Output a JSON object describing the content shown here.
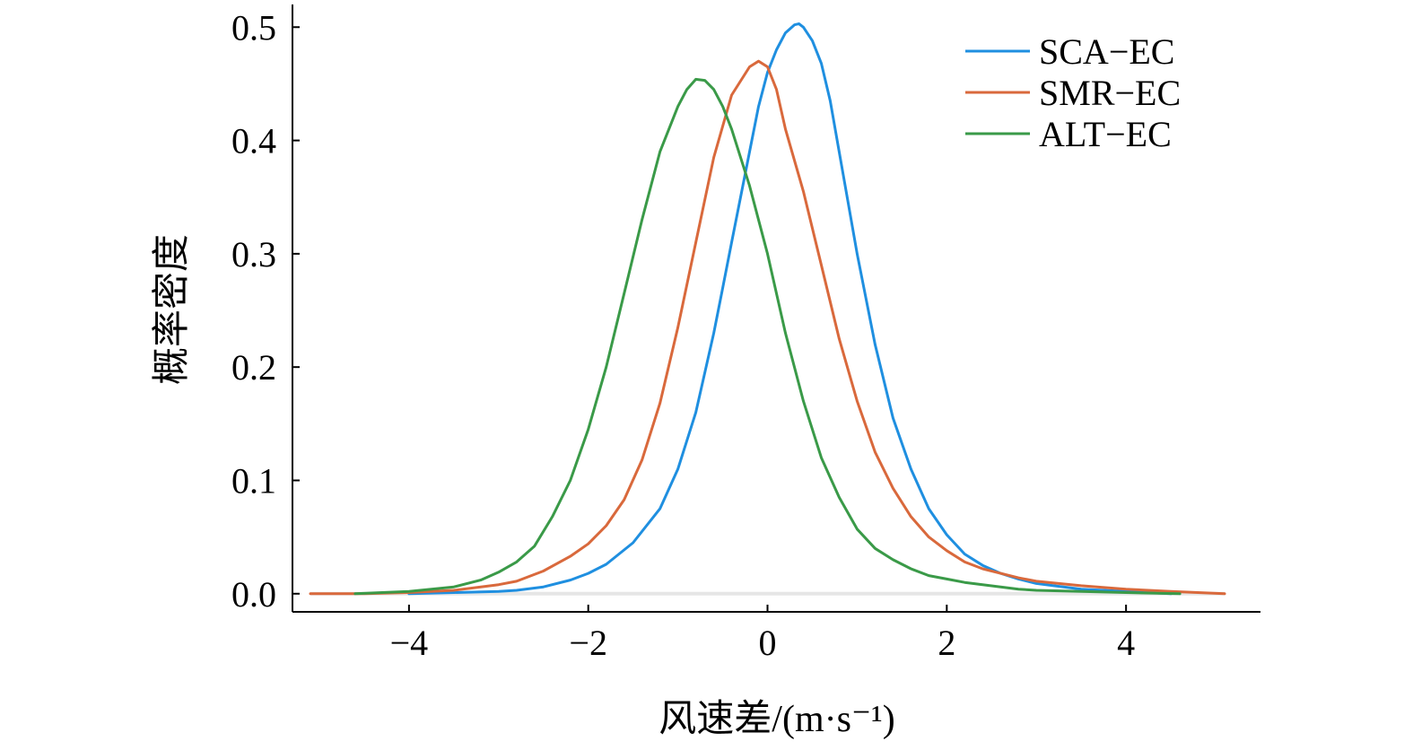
{
  "chart_data": {
    "type": "line",
    "xlabel": "风速差/(m·s⁻¹)",
    "ylabel": "概率密度",
    "xlim": [
      -5.3,
      5.5
    ],
    "ylim": [
      -0.016,
      0.52
    ],
    "xticks": [
      -4,
      -2,
      0,
      2,
      4
    ],
    "xtick_labels": [
      "−4",
      "−2",
      "0",
      "2",
      "4"
    ],
    "yticks": [
      0.0,
      0.1,
      0.2,
      0.3,
      0.4,
      0.5
    ],
    "ytick_labels": [
      "0.0",
      "0.1",
      "0.2",
      "0.3",
      "0.4",
      "0.5"
    ],
    "legend_position": "top-right",
    "grid": false,
    "zero_reference_line": true,
    "series": [
      {
        "name": "SCA−EC",
        "color": "#1f8fe0",
        "x": [
          -4.0,
          -3.5,
          -3.0,
          -2.8,
          -2.5,
          -2.2,
          -2.0,
          -1.8,
          -1.5,
          -1.2,
          -1.0,
          -0.8,
          -0.6,
          -0.5,
          -0.4,
          -0.3,
          -0.2,
          -0.1,
          0.0,
          0.1,
          0.2,
          0.3,
          0.35,
          0.4,
          0.5,
          0.6,
          0.7,
          0.8,
          0.9,
          1.0,
          1.2,
          1.4,
          1.6,
          1.8,
          2.0,
          2.2,
          2.4,
          2.6,
          2.8,
          3.0,
          3.5,
          4.0,
          4.5
        ],
        "y": [
          0.0,
          0.001,
          0.002,
          0.003,
          0.006,
          0.012,
          0.018,
          0.026,
          0.045,
          0.075,
          0.11,
          0.16,
          0.23,
          0.27,
          0.31,
          0.35,
          0.39,
          0.43,
          0.46,
          0.48,
          0.495,
          0.502,
          0.503,
          0.5,
          0.488,
          0.468,
          0.435,
          0.39,
          0.345,
          0.3,
          0.22,
          0.155,
          0.11,
          0.075,
          0.052,
          0.035,
          0.025,
          0.018,
          0.013,
          0.009,
          0.004,
          0.002,
          0.0
        ]
      },
      {
        "name": "SMR−EC",
        "color": "#d9693c",
        "x": [
          -5.1,
          -4.5,
          -4.0,
          -3.5,
          -3.0,
          -2.8,
          -2.5,
          -2.2,
          -2.0,
          -1.8,
          -1.6,
          -1.4,
          -1.2,
          -1.0,
          -0.8,
          -0.6,
          -0.4,
          -0.2,
          -0.1,
          0.0,
          0.1,
          0.2,
          0.4,
          0.6,
          0.8,
          1.0,
          1.2,
          1.4,
          1.6,
          1.8,
          2.0,
          2.2,
          2.4,
          2.6,
          2.8,
          3.0,
          3.5,
          4.0,
          4.5,
          5.1
        ],
        "y": [
          0.0,
          0.0,
          0.001,
          0.003,
          0.008,
          0.011,
          0.02,
          0.033,
          0.044,
          0.06,
          0.083,
          0.118,
          0.168,
          0.235,
          0.31,
          0.385,
          0.44,
          0.465,
          0.47,
          0.465,
          0.445,
          0.41,
          0.355,
          0.29,
          0.225,
          0.17,
          0.125,
          0.093,
          0.068,
          0.05,
          0.038,
          0.028,
          0.022,
          0.018,
          0.014,
          0.011,
          0.007,
          0.004,
          0.002,
          0.0
        ]
      },
      {
        "name": "ALT−EC",
        "color": "#3a9a48",
        "x": [
          -4.6,
          -4.0,
          -3.5,
          -3.2,
          -3.0,
          -2.8,
          -2.6,
          -2.4,
          -2.2,
          -2.0,
          -1.8,
          -1.6,
          -1.4,
          -1.2,
          -1.0,
          -0.9,
          -0.8,
          -0.7,
          -0.6,
          -0.5,
          -0.4,
          -0.2,
          0.0,
          0.2,
          0.4,
          0.6,
          0.8,
          1.0,
          1.2,
          1.4,
          1.6,
          1.8,
          2.0,
          2.2,
          2.4,
          2.6,
          2.8,
          3.0,
          3.5,
          4.0,
          4.6
        ],
        "y": [
          0.0,
          0.002,
          0.006,
          0.012,
          0.019,
          0.028,
          0.042,
          0.068,
          0.1,
          0.145,
          0.2,
          0.265,
          0.33,
          0.39,
          0.43,
          0.445,
          0.454,
          0.453,
          0.445,
          0.43,
          0.41,
          0.36,
          0.3,
          0.23,
          0.17,
          0.12,
          0.085,
          0.057,
          0.04,
          0.03,
          0.022,
          0.016,
          0.013,
          0.01,
          0.008,
          0.006,
          0.004,
          0.003,
          0.002,
          0.001,
          0.0
        ]
      }
    ]
  }
}
